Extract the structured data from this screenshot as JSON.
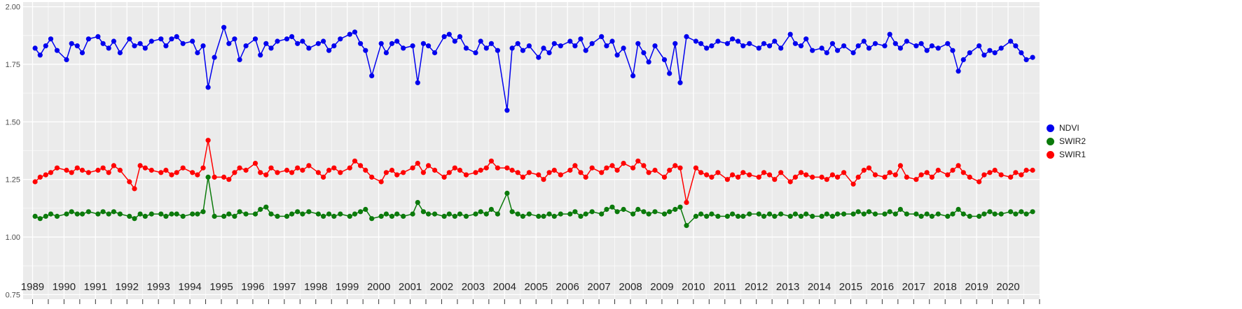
{
  "chart_data": {
    "type": "line",
    "title": "",
    "xlabel": "",
    "ylabel": "",
    "panel_background": "#EBEBEB",
    "gridline_color": "#FFFFFF",
    "axis_text_color": "#4D4D4D",
    "x_axis": {
      "range": [
        1988.7,
        2021.0
      ],
      "tick_label_years": [
        1989,
        1990,
        1991,
        1992,
        1993,
        1994,
        1995,
        1996,
        1997,
        1998,
        1999,
        2000,
        2001,
        2002,
        2003,
        2004,
        2005,
        2006,
        2007,
        2008,
        2009,
        2010,
        2011,
        2012,
        2013,
        2014,
        2015,
        2016,
        2017,
        2018,
        2019,
        2020
      ],
      "minor_tick_step": 0.5
    },
    "y_axis": {
      "range": [
        0.75,
        2.0
      ],
      "tick_values": [
        2.0,
        1.75,
        1.5,
        1.25,
        1.0,
        0.75
      ],
      "tick_labels": [
        "2.00",
        "1.75",
        "1.50",
        "1.25",
        "1.00",
        "0.75"
      ],
      "minor_tick_values": [
        1.875,
        1.625,
        1.375,
        1.125,
        0.875
      ]
    },
    "legend": {
      "position": "right",
      "items": [
        {
          "label": "NDVI",
          "color": "#0000EE"
        },
        {
          "label": "SWIR2",
          "color": "#0B7A0B"
        },
        {
          "label": "SWIR1",
          "color": "#FF0000"
        }
      ]
    },
    "sample_offsets_within_year": [
      0.08,
      0.24,
      0.42,
      0.58,
      0.78
    ],
    "years": [
      1989,
      1990,
      1991,
      1992,
      1993,
      1994,
      1995,
      1996,
      1997,
      1998,
      1999,
      2000,
      2001,
      2002,
      2003,
      2004,
      2005,
      2006,
      2007,
      2008,
      2009,
      2010,
      2011,
      2012,
      2013,
      2014,
      2015,
      2016,
      2017,
      2018,
      2019,
      2020
    ],
    "series": [
      {
        "name": "NDVI",
        "color": "#0000EE",
        "values_by_year": [
          [
            1.82,
            1.79,
            1.83,
            1.86,
            1.81
          ],
          [
            1.77,
            1.84,
            1.83,
            1.8,
            1.86
          ],
          [
            1.87,
            1.84,
            1.82,
            1.85,
            1.8
          ],
          [
            1.86,
            1.83,
            1.84,
            1.82,
            1.85
          ],
          [
            1.86,
            1.83,
            1.86,
            1.87,
            1.84
          ],
          [
            1.85,
            1.8,
            1.83,
            1.65,
            1.78
          ],
          [
            1.91,
            1.84,
            1.86,
            1.77,
            1.83
          ],
          [
            1.86,
            1.79,
            1.84,
            1.82,
            1.85
          ],
          [
            1.86,
            1.87,
            1.84,
            1.85,
            1.82
          ],
          [
            1.84,
            1.85,
            1.81,
            1.83,
            1.86
          ],
          [
            1.88,
            1.89,
            1.84,
            1.81,
            1.7
          ],
          [
            1.84,
            1.8,
            1.84,
            1.85,
            1.82
          ],
          [
            1.83,
            1.67,
            1.84,
            1.83,
            1.8
          ],
          [
            1.87,
            1.88,
            1.85,
            1.87,
            1.82
          ],
          [
            1.8,
            1.85,
            1.82,
            1.84,
            1.81
          ],
          [
            1.55,
            1.82,
            1.84,
            1.81,
            1.83
          ],
          [
            1.78,
            1.82,
            1.8,
            1.84,
            1.83
          ],
          [
            1.85,
            1.83,
            1.86,
            1.81,
            1.84
          ],
          [
            1.87,
            1.83,
            1.85,
            1.79,
            1.82
          ],
          [
            1.7,
            1.84,
            1.8,
            1.76,
            1.83
          ],
          [
            1.77,
            1.71,
            1.84,
            1.67,
            1.87
          ],
          [
            1.85,
            1.84,
            1.82,
            1.83,
            1.85
          ],
          [
            1.84,
            1.86,
            1.85,
            1.83,
            1.84
          ],
          [
            1.82,
            1.84,
            1.83,
            1.85,
            1.82
          ],
          [
            1.88,
            1.84,
            1.83,
            1.86,
            1.81
          ],
          [
            1.82,
            1.8,
            1.84,
            1.81,
            1.83
          ],
          [
            1.8,
            1.83,
            1.85,
            1.82,
            1.84
          ],
          [
            1.83,
            1.88,
            1.84,
            1.82,
            1.85
          ],
          [
            1.83,
            1.84,
            1.81,
            1.83,
            1.82
          ],
          [
            1.84,
            1.81,
            1.72,
            1.77,
            1.8
          ],
          [
            1.83,
            1.79,
            1.81,
            1.8,
            1.82
          ],
          [
            1.85,
            1.83,
            1.8,
            1.77,
            1.78
          ]
        ]
      },
      {
        "name": "SWIR2",
        "color": "#0B7A0B",
        "values_by_year": [
          [
            1.09,
            1.08,
            1.09,
            1.1,
            1.09
          ],
          [
            1.1,
            1.11,
            1.1,
            1.1,
            1.11
          ],
          [
            1.1,
            1.11,
            1.1,
            1.11,
            1.1
          ],
          [
            1.09,
            1.08,
            1.1,
            1.09,
            1.1
          ],
          [
            1.1,
            1.09,
            1.1,
            1.1,
            1.09
          ],
          [
            1.1,
            1.1,
            1.11,
            1.26,
            1.09
          ],
          [
            1.09,
            1.1,
            1.09,
            1.11,
            1.1
          ],
          [
            1.1,
            1.12,
            1.13,
            1.1,
            1.09
          ],
          [
            1.09,
            1.1,
            1.11,
            1.1,
            1.11
          ],
          [
            1.1,
            1.09,
            1.1,
            1.09,
            1.1
          ],
          [
            1.09,
            1.1,
            1.11,
            1.12,
            1.08
          ],
          [
            1.09,
            1.1,
            1.09,
            1.1,
            1.09
          ],
          [
            1.1,
            1.15,
            1.11,
            1.1,
            1.1
          ],
          [
            1.09,
            1.1,
            1.09,
            1.1,
            1.09
          ],
          [
            1.1,
            1.11,
            1.1,
            1.12,
            1.1
          ],
          [
            1.19,
            1.11,
            1.1,
            1.09,
            1.1
          ],
          [
            1.09,
            1.09,
            1.1,
            1.09,
            1.1
          ],
          [
            1.1,
            1.11,
            1.09,
            1.1,
            1.11
          ],
          [
            1.1,
            1.12,
            1.13,
            1.11,
            1.12
          ],
          [
            1.1,
            1.12,
            1.11,
            1.1,
            1.11
          ],
          [
            1.1,
            1.11,
            1.12,
            1.13,
            1.05
          ],
          [
            1.09,
            1.1,
            1.09,
            1.1,
            1.09
          ],
          [
            1.09,
            1.1,
            1.09,
            1.09,
            1.1
          ],
          [
            1.1,
            1.09,
            1.1,
            1.09,
            1.1
          ],
          [
            1.09,
            1.1,
            1.09,
            1.1,
            1.09
          ],
          [
            1.09,
            1.1,
            1.09,
            1.1,
            1.1
          ],
          [
            1.1,
            1.11,
            1.1,
            1.11,
            1.1
          ],
          [
            1.1,
            1.11,
            1.1,
            1.12,
            1.1
          ],
          [
            1.1,
            1.09,
            1.1,
            1.09,
            1.1
          ],
          [
            1.09,
            1.1,
            1.12,
            1.1,
            1.09
          ],
          [
            1.09,
            1.1,
            1.11,
            1.1,
            1.1
          ],
          [
            1.11,
            1.1,
            1.11,
            1.1,
            1.11
          ]
        ]
      },
      {
        "name": "SWIR1",
        "color": "#FF0000",
        "values_by_year": [
          [
            1.24,
            1.26,
            1.27,
            1.28,
            1.3
          ],
          [
            1.29,
            1.28,
            1.3,
            1.29,
            1.28
          ],
          [
            1.29,
            1.3,
            1.28,
            1.31,
            1.29
          ],
          [
            1.24,
            1.21,
            1.31,
            1.3,
            1.29
          ],
          [
            1.28,
            1.29,
            1.27,
            1.28,
            1.3
          ],
          [
            1.28,
            1.27,
            1.3,
            1.42,
            1.26
          ],
          [
            1.26,
            1.25,
            1.28,
            1.3,
            1.29
          ],
          [
            1.32,
            1.28,
            1.27,
            1.3,
            1.28
          ],
          [
            1.29,
            1.28,
            1.3,
            1.29,
            1.31
          ],
          [
            1.28,
            1.26,
            1.29,
            1.3,
            1.28
          ],
          [
            1.3,
            1.33,
            1.31,
            1.29,
            1.26
          ],
          [
            1.24,
            1.28,
            1.29,
            1.27,
            1.28
          ],
          [
            1.3,
            1.32,
            1.28,
            1.31,
            1.29
          ],
          [
            1.26,
            1.28,
            1.3,
            1.29,
            1.27
          ],
          [
            1.28,
            1.29,
            1.3,
            1.33,
            1.3
          ],
          [
            1.3,
            1.29,
            1.28,
            1.26,
            1.28
          ],
          [
            1.27,
            1.25,
            1.28,
            1.29,
            1.27
          ],
          [
            1.29,
            1.31,
            1.28,
            1.26,
            1.3
          ],
          [
            1.28,
            1.3,
            1.31,
            1.29,
            1.32
          ],
          [
            1.3,
            1.33,
            1.31,
            1.28,
            1.29
          ],
          [
            1.26,
            1.29,
            1.31,
            1.3,
            1.15
          ],
          [
            1.3,
            1.28,
            1.27,
            1.26,
            1.28
          ],
          [
            1.25,
            1.27,
            1.26,
            1.28,
            1.27
          ],
          [
            1.26,
            1.28,
            1.27,
            1.25,
            1.28
          ],
          [
            1.24,
            1.26,
            1.28,
            1.27,
            1.26
          ],
          [
            1.26,
            1.25,
            1.27,
            1.26,
            1.28
          ],
          [
            1.23,
            1.26,
            1.29,
            1.3,
            1.27
          ],
          [
            1.26,
            1.28,
            1.27,
            1.31,
            1.26
          ],
          [
            1.25,
            1.27,
            1.28,
            1.26,
            1.29
          ],
          [
            1.27,
            1.29,
            1.31,
            1.28,
            1.26
          ],
          [
            1.24,
            1.27,
            1.28,
            1.29,
            1.27
          ],
          [
            1.26,
            1.28,
            1.27,
            1.29,
            1.29
          ]
        ]
      }
    ]
  }
}
